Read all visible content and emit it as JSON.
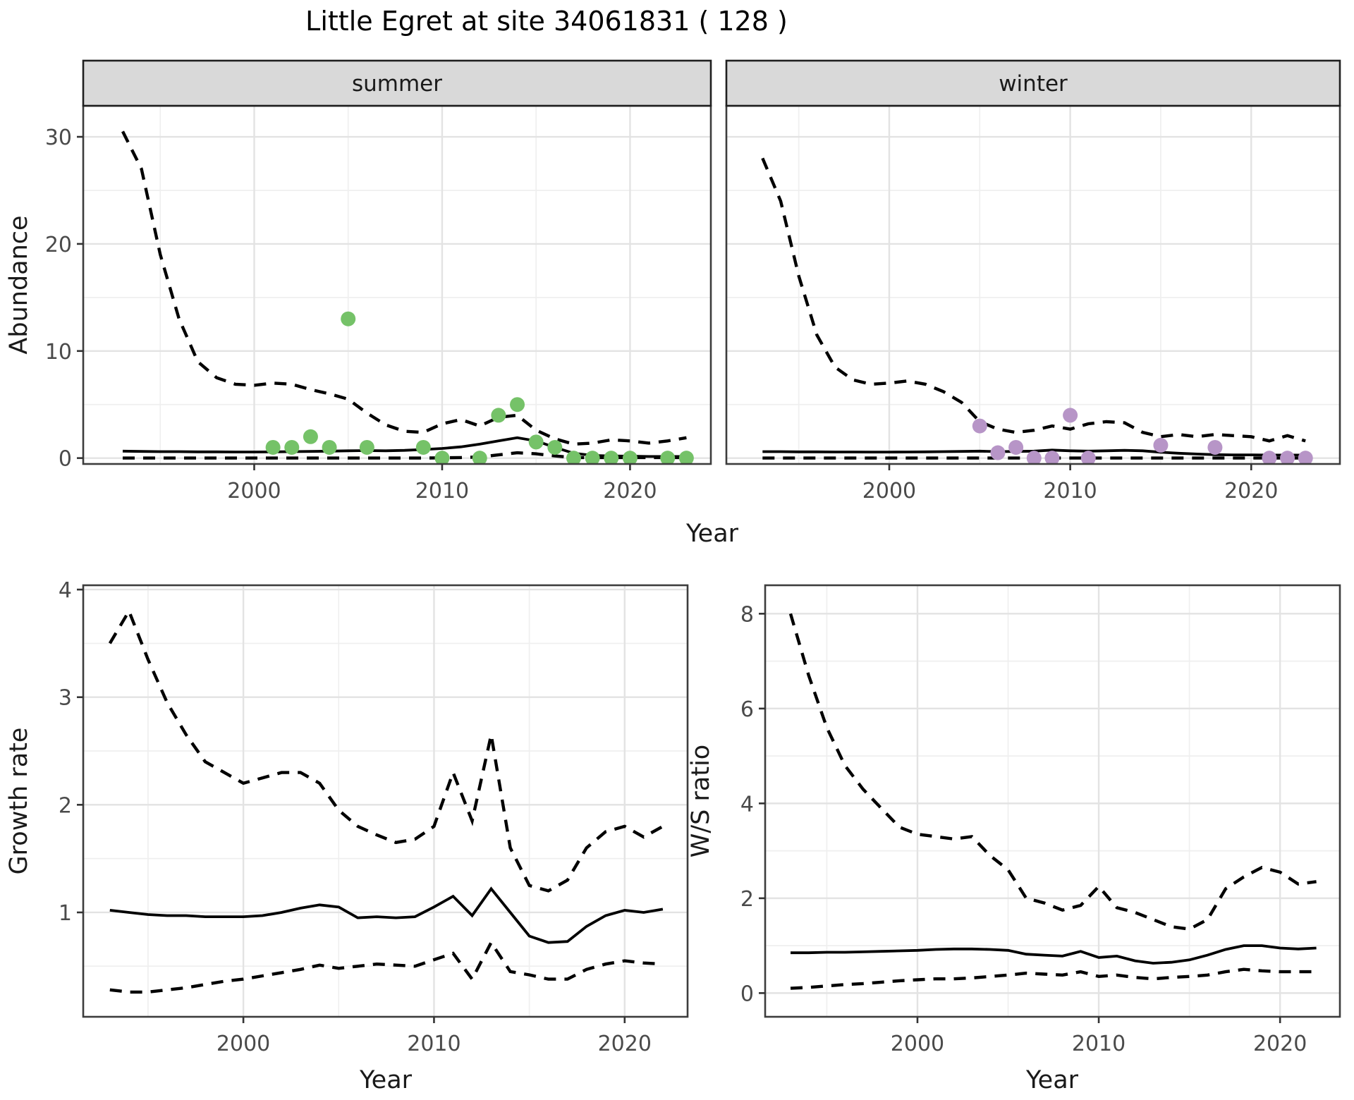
{
  "title": "Little Egret at site 34061831 ( 128 )",
  "colors": {
    "summer_points": "#75c268",
    "winter_points": "#b795c7",
    "line": "#000000",
    "strip_fill": "#d9d9d9",
    "strip_border": "#1f1f1f",
    "panel_border": "#3d3d3d",
    "grid_major": "#e3e3e3",
    "grid_minor": "#efefef",
    "tick_text": "#4a4a4a",
    "axis_title_text": "#1a1a1a"
  },
  "axes": {
    "abundance_label": "Abundance",
    "growth_label": "Growth rate",
    "ws_label": "W/S ratio",
    "year_label": "Year"
  },
  "chart_data": [
    {
      "id": "abundance-summer",
      "type": "line",
      "facet_label": "summer",
      "ylabel": "Abundance",
      "xlabel": "Year",
      "xlim": [
        1990.9,
        2024.3
      ],
      "ylim": [
        -0.55,
        32.9
      ],
      "xticks": [
        2000,
        2010,
        2020
      ],
      "yticks": [
        0,
        10,
        20,
        30
      ],
      "xminor": [
        1995,
        2005,
        2015
      ],
      "yminor": [
        5,
        15,
        25
      ],
      "x": [
        1993,
        1994,
        1995,
        1996,
        1997,
        1998,
        1999,
        2000,
        2001,
        2002,
        2003,
        2004,
        2005,
        2006,
        2007,
        2008,
        2009,
        2010,
        2011,
        2012,
        2013,
        2014,
        2015,
        2016,
        2017,
        2018,
        2019,
        2020,
        2021,
        2022,
        2023
      ],
      "series": [
        {
          "name": "mean",
          "style": "solid",
          "values": [
            0.65,
            0.62,
            0.6,
            0.6,
            0.58,
            0.58,
            0.57,
            0.57,
            0.58,
            0.6,
            0.62,
            0.65,
            0.68,
            0.7,
            0.68,
            0.72,
            0.8,
            0.9,
            1.05,
            1.3,
            1.6,
            1.9,
            1.6,
            1.0,
            0.45,
            0.25,
            0.2,
            0.18,
            0.15,
            0.15,
            0.15
          ]
        },
        {
          "name": "upper_ci",
          "style": "dashed",
          "values": [
            30.5,
            27.0,
            19.0,
            13.0,
            9.0,
            7.5,
            6.9,
            6.8,
            7.0,
            6.9,
            6.4,
            6.0,
            5.5,
            4.2,
            3.1,
            2.5,
            2.4,
            3.2,
            3.6,
            3.0,
            3.8,
            4.0,
            2.6,
            1.8,
            1.3,
            1.4,
            1.7,
            1.6,
            1.4,
            1.6,
            1.9
          ]
        },
        {
          "name": "lower_ci",
          "style": "dashed",
          "values": [
            0,
            0,
            0,
            0,
            0,
            0,
            0,
            0,
            0,
            0,
            0,
            0,
            0,
            0,
            0,
            0,
            0,
            0.02,
            0.05,
            0.1,
            0.3,
            0.5,
            0.4,
            0.2,
            0.05,
            0.05,
            0.05,
            0.05,
            0.05,
            0.05,
            0.05
          ]
        }
      ],
      "points": [
        [
          2001,
          1
        ],
        [
          2002,
          1
        ],
        [
          2003,
          2
        ],
        [
          2004,
          1
        ],
        [
          2005,
          13
        ],
        [
          2006,
          1
        ],
        [
          2009,
          1
        ],
        [
          2010,
          0
        ],
        [
          2012,
          0
        ],
        [
          2013,
          4
        ],
        [
          2014,
          5
        ],
        [
          2015,
          1.5
        ],
        [
          2016,
          1
        ],
        [
          2017,
          0
        ],
        [
          2018,
          0
        ],
        [
          2019,
          0
        ],
        [
          2020,
          0
        ],
        [
          2022,
          0
        ],
        [
          2023,
          0
        ]
      ],
      "point_color_key": "summer_points"
    },
    {
      "id": "abundance-winter",
      "type": "line",
      "facet_label": "winter",
      "ylabel": "",
      "xlabel": "Year",
      "xlim": [
        1991.0,
        2024.9
      ],
      "ylim": [
        -0.55,
        32.9
      ],
      "xticks": [
        2000,
        2010,
        2020
      ],
      "yticks": [],
      "xminor": [
        1995,
        2005,
        2015
      ],
      "yminor": [
        5,
        15,
        25
      ],
      "ygrid": [
        0,
        10,
        20,
        30
      ],
      "x": [
        1993,
        1994,
        1995,
        1996,
        1997,
        1998,
        1999,
        2000,
        2001,
        2002,
        2003,
        2004,
        2005,
        2006,
        2007,
        2008,
        2009,
        2010,
        2011,
        2012,
        2013,
        2014,
        2015,
        2016,
        2017,
        2018,
        2019,
        2020,
        2021,
        2022,
        2023
      ],
      "series": [
        {
          "name": "mean",
          "style": "solid",
          "values": [
            0.6,
            0.6,
            0.58,
            0.58,
            0.57,
            0.57,
            0.56,
            0.56,
            0.57,
            0.58,
            0.6,
            0.62,
            0.65,
            0.6,
            0.62,
            0.65,
            0.75,
            0.68,
            0.65,
            0.68,
            0.72,
            0.68,
            0.55,
            0.45,
            0.38,
            0.32,
            0.3,
            0.3,
            0.28,
            0.28,
            0.28
          ]
        },
        {
          "name": "upper_ci",
          "style": "dashed",
          "values": [
            28.0,
            24.0,
            17.0,
            11.5,
            8.5,
            7.3,
            6.9,
            7.0,
            7.2,
            6.9,
            6.2,
            5.2,
            3.4,
            2.7,
            2.4,
            2.6,
            3.0,
            2.7,
            3.2,
            3.4,
            3.3,
            2.4,
            2.0,
            2.2,
            2.0,
            2.2,
            2.1,
            2.0,
            1.6,
            2.1,
            1.6
          ]
        },
        {
          "name": "lower_ci",
          "style": "dashed",
          "values": [
            0,
            0,
            0,
            0,
            0,
            0,
            0,
            0,
            0,
            0,
            0,
            0,
            0,
            0,
            0,
            0,
            0,
            0,
            0,
            0,
            0,
            0,
            0,
            0,
            0,
            0,
            0,
            0,
            0,
            0,
            0
          ]
        }
      ],
      "points": [
        [
          2005,
          3
        ],
        [
          2006,
          0.5
        ],
        [
          2007,
          1
        ],
        [
          2008,
          0
        ],
        [
          2009,
          0
        ],
        [
          2010,
          4
        ],
        [
          2011,
          0
        ],
        [
          2015,
          1.2
        ],
        [
          2018,
          1
        ],
        [
          2021,
          0
        ],
        [
          2022,
          0
        ],
        [
          2023,
          0
        ]
      ],
      "point_color_key": "winter_points"
    },
    {
      "id": "growth-rate",
      "type": "line",
      "facet_label": "",
      "ylabel": "Growth rate",
      "xlabel": "Year",
      "xlim": [
        1991.6,
        2023.3
      ],
      "ylim": [
        0.03,
        4.04
      ],
      "xticks": [
        2000,
        2010,
        2020
      ],
      "yticks": [
        1,
        2,
        3,
        4
      ],
      "xminor": [
        1995,
        2005,
        2015
      ],
      "yminor": [
        0.5,
        1.5,
        2.5,
        3.5
      ],
      "x": [
        1993,
        1994,
        1995,
        1996,
        1997,
        1998,
        1999,
        2000,
        2001,
        2002,
        2003,
        2004,
        2005,
        2006,
        2007,
        2008,
        2009,
        2010,
        2011,
        2012,
        2013,
        2014,
        2015,
        2016,
        2017,
        2018,
        2019,
        2020,
        2021,
        2022
      ],
      "series": [
        {
          "name": "mean",
          "style": "solid",
          "values": [
            1.02,
            1.0,
            0.98,
            0.97,
            0.97,
            0.96,
            0.96,
            0.96,
            0.97,
            1.0,
            1.04,
            1.07,
            1.05,
            0.95,
            0.96,
            0.95,
            0.96,
            1.05,
            1.15,
            0.97,
            1.22,
            1.0,
            0.78,
            0.72,
            0.73,
            0.87,
            0.97,
            1.02,
            1.0,
            1.03
          ]
        },
        {
          "name": "upper_ci",
          "style": "dashed",
          "values": [
            3.5,
            3.8,
            3.35,
            2.95,
            2.65,
            2.4,
            2.3,
            2.2,
            2.25,
            2.3,
            2.3,
            2.2,
            1.95,
            1.8,
            1.72,
            1.65,
            1.68,
            1.8,
            2.3,
            1.85,
            2.65,
            1.6,
            1.25,
            1.2,
            1.3,
            1.6,
            1.75,
            1.8,
            1.7,
            1.8
          ]
        },
        {
          "name": "lower_ci",
          "style": "dashed",
          "values": [
            0.28,
            0.26,
            0.26,
            0.28,
            0.3,
            0.33,
            0.36,
            0.38,
            0.41,
            0.44,
            0.47,
            0.51,
            0.48,
            0.5,
            0.52,
            0.51,
            0.5,
            0.56,
            0.62,
            0.38,
            0.72,
            0.45,
            0.42,
            0.38,
            0.38,
            0.47,
            0.52,
            0.55,
            0.53,
            0.52
          ]
        }
      ],
      "points": [],
      "point_color_key": "summer_points"
    },
    {
      "id": "ws-ratio",
      "type": "line",
      "facet_label": "",
      "ylabel": "W/S ratio",
      "xlabel": "Year",
      "xlim": [
        1991.6,
        2023.3
      ],
      "ylim": [
        -0.5,
        8.6
      ],
      "xticks": [
        2000,
        2010,
        2020
      ],
      "yticks": [
        0,
        2,
        4,
        6,
        8
      ],
      "xminor": [
        1995,
        2005,
        2015
      ],
      "yminor": [
        1,
        3,
        5,
        7
      ],
      "x": [
        1993,
        1994,
        1995,
        1996,
        1997,
        1998,
        1999,
        2000,
        2001,
        2002,
        2003,
        2004,
        2005,
        2006,
        2007,
        2008,
        2009,
        2010,
        2011,
        2012,
        2013,
        2014,
        2015,
        2016,
        2017,
        2018,
        2019,
        2020,
        2021,
        2022
      ],
      "series": [
        {
          "name": "mean",
          "style": "solid",
          "values": [
            0.85,
            0.85,
            0.86,
            0.86,
            0.87,
            0.88,
            0.89,
            0.9,
            0.92,
            0.93,
            0.93,
            0.92,
            0.9,
            0.82,
            0.8,
            0.78,
            0.88,
            0.75,
            0.78,
            0.68,
            0.63,
            0.65,
            0.7,
            0.8,
            0.92,
            1.0,
            1.0,
            0.95,
            0.93,
            0.95
          ]
        },
        {
          "name": "upper_ci",
          "style": "dashed",
          "values": [
            8.0,
            6.7,
            5.6,
            4.8,
            4.3,
            3.9,
            3.5,
            3.35,
            3.3,
            3.25,
            3.3,
            2.9,
            2.6,
            2.0,
            1.9,
            1.75,
            1.85,
            2.25,
            1.8,
            1.7,
            1.55,
            1.4,
            1.35,
            1.55,
            2.2,
            2.45,
            2.65,
            2.55,
            2.3,
            2.35
          ]
        },
        {
          "name": "lower_ci",
          "style": "dashed",
          "values": [
            0.1,
            0.12,
            0.15,
            0.18,
            0.2,
            0.23,
            0.26,
            0.28,
            0.3,
            0.3,
            0.32,
            0.35,
            0.38,
            0.42,
            0.4,
            0.38,
            0.45,
            0.35,
            0.38,
            0.33,
            0.3,
            0.33,
            0.35,
            0.38,
            0.45,
            0.5,
            0.47,
            0.45,
            0.45,
            0.45
          ]
        }
      ],
      "points": [],
      "point_color_key": "winter_points"
    }
  ]
}
